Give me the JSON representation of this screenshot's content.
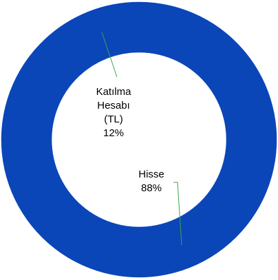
{
  "chart_data": {
    "type": "donut",
    "categories": [
      "Katılma Hesabı (TL)",
      "Hisse"
    ],
    "values": [
      12,
      88
    ],
    "value_labels": [
      "12%",
      "88%"
    ],
    "color": "#0a46b8"
  }
}
